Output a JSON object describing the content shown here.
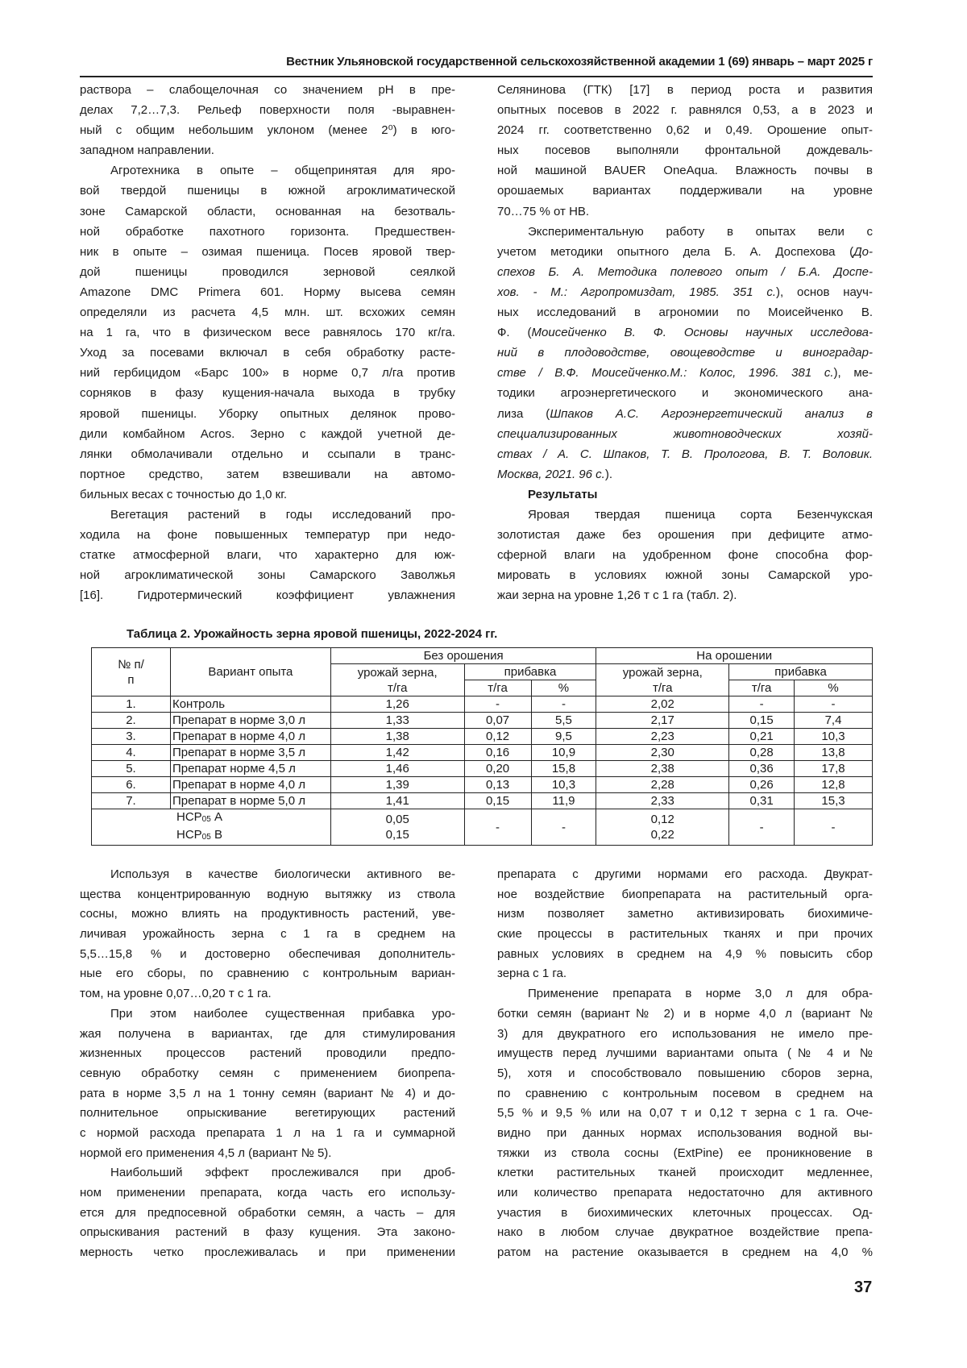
{
  "header": {
    "journal": "Вестник Ульяновской государственной сельскохозяйственной академии 1 (69) январь – март 2025 г"
  },
  "top_left": [
    {
      "indent": false,
      "lines": [
        "раствора – слабощелочная со значением pH в пре-",
        "делах 7,2…7,3. Рельеф поверхности поля -выравнен-",
        "ный с общим небольшим уклоном (менее 2⁰) в юго-",
        "западном направлении."
      ]
    },
    {
      "indent": true,
      "lines": [
        "Агротехника в опыте – общепринятая для яро-",
        "вой твердой пшеницы в южной агроклиматической",
        "зоне Самарской области, основанная на безотваль-",
        "ной обработке пахотного горизонта. Предшествен-",
        "ник в опыте – озимая пшеница. Посев яровой твер-",
        "дой пшеницы проводился зерновой сеялкой",
        "Amazone DMC Primera 601. Норму высева семян",
        "определяли из расчета 4,5 млн. шт. всхожих семян",
        "на 1 га, что в физическом весе равнялось 170 кг/га.",
        "Уход за посевами включал в себя обработку расте-",
        "ний гербицидом «Барс 100» в норме 0,7 л/га против",
        "сорняков в фазу кущения-начала выхода в трубку",
        "яровой пшеницы. Уборку опытных делянок прово-",
        "дили комбайном Acros. Зерно с каждой учетной де-",
        "лянки обмолачивали отдельно и ссыпали в транс-",
        "портное средство, затем взвешивали на автомо-",
        "бильных весах с точностью до 1,0 кг."
      ]
    },
    {
      "indent": true,
      "open": true,
      "lines": [
        "Вегетация растений в годы исследований про-",
        "ходила на фоне повышенных температур при недо-",
        "статке атмосферной влаги, что характерно для юж-",
        "ной агроклиматической зоны Самарского Заволжья",
        "[16]. Гидротермический коэффициент увлажнения"
      ]
    }
  ],
  "top_right": [
    {
      "indent": false,
      "lines": [
        "Селянинова (ГТК) [17] в период роста и развития",
        "опытных посевов в 2022 г. равнялся 0,53, а в 2023 и",
        "2024 гг. соответственно 0,62 и 0,49. Орошение опыт-",
        "ных посевов выполняли фронтальной дождеваль-",
        "ной машиной BAUER OneAqua. Влажность почвы в",
        "орошаемых вариантах поддерживали на уровне",
        "70…75 % от НВ."
      ]
    },
    {
      "indent": true,
      "lines": [
        "Экспериментальную работу в опытах вели с",
        [
          {
            "t": "учетом методики опытного дела Б. А. Доспехова ("
          },
          {
            "t": "До-",
            "i": true
          }
        ],
        [
          {
            "t": "спехов Б. А. Методика полевого опыт / Б.А. Доспе-",
            "i": true
          }
        ],
        [
          {
            "t": "хов. - М.: Агропромиздат, 1985. 351 с.",
            "i": true
          },
          {
            "t": "), основ науч-"
          }
        ],
        "ных исследований в агрономии по Моисейченко В.",
        [
          {
            "t": "Ф. ("
          },
          {
            "t": "Моисейченко В. Ф. Основы научных исследова-",
            "i": true
          }
        ],
        [
          {
            "t": "ний в плодоводстве, овощеводстве и виноградар-",
            "i": true
          }
        ],
        [
          {
            "t": "стве / В.Ф. Моисейченко.М.: Колос, 1996. 381 с.",
            "i": true
          },
          {
            "t": "), ме-"
          }
        ],
        "тодики агроэнергетического и экономического ана-",
        [
          {
            "t": "лиза ("
          },
          {
            "t": "Шпаков А.С. Агроэнергетический анализ в",
            "i": true
          }
        ],
        [
          {
            "t": "специализированных животноводческих хозяй-",
            "i": true
          }
        ],
        [
          {
            "t": "ствах / А. С. Шпаков, Т. В. Прологова, В. Т. Воловик.",
            "i": true
          }
        ],
        [
          {
            "t": "Москва, 2021. 96 с.",
            "i": true
          },
          {
            "t": ")."
          }
        ]
      ]
    },
    {
      "indent": true,
      "heading": true,
      "lines": [
        "Результаты"
      ]
    },
    {
      "indent": true,
      "lines": [
        "Яровая твердая пшеница сорта Безенчукская",
        "золотистая даже без орошения при дефиците атмо-",
        "сферной влаги на удобренном фоне способна фор-",
        "мировать в условиях южной зоны Самарской уро-",
        "жаи зерна на уровне 1,26 т с 1 га (табл. 2)."
      ]
    }
  ],
  "table": {
    "caption": "Таблица 2. Урожайность зерна яровой пшеницы, 2022-2024 гг.",
    "h_num": "№ п/п",
    "h_variant": "Вариант опыта",
    "h_no_irr": "Без орошения",
    "h_irr": "На орошении",
    "h_yield": "урожай зерна,",
    "h_yield_unit": "т/га",
    "h_gain": "прибавка",
    "h_tha": "т/га",
    "h_pct": "%",
    "rows": [
      [
        "1.",
        "Контроль",
        "1,26",
        "-",
        "-",
        "2,02",
        "-",
        "-"
      ],
      [
        "2.",
        "Препарат в норме 3,0 л",
        "1,33",
        "0,07",
        "5,5",
        "2,17",
        "0,15",
        "7,4"
      ],
      [
        "3.",
        "Препарат в норме 4,0 л",
        "1,38",
        "0,12",
        "9,5",
        "2,23",
        "0,21",
        "10,3"
      ],
      [
        "4.",
        "Препарат в норме 3,5 л",
        "1,42",
        "0,16",
        "10,9",
        "2,30",
        "0,28",
        "13,8"
      ],
      [
        "5.",
        "Препарат норме 4,5 л",
        "1,46",
        "0,20",
        "15,8",
        "2,38",
        "0,36",
        "17,8"
      ],
      [
        "6.",
        "Препарат в норме 4,0 л",
        "1,39",
        "0,13",
        "10,3",
        "2,28",
        "0,26",
        "12,8"
      ],
      [
        "7.",
        "Препарат в норме 5,0 л",
        "1,41",
        "0,15",
        "11,9",
        "2,33",
        "0,31",
        "15,3"
      ]
    ],
    "lsd": {
      "label_a": "НСР",
      "sub": "05",
      "a": " А",
      "b": " В",
      "no_irr_a": "0,05",
      "no_irr_b": "0,15",
      "irr_a": "0,12",
      "irr_b": "0,22",
      "dash": "-"
    }
  },
  "bottom_left": [
    {
      "indent": true,
      "lines": [
        "Используя в качестве биологически активного ве-",
        "щества концентрированную водную вытяжку из ствола",
        "сосны, можно влиять на продуктивность растений, уве-",
        "личивая урожайность зерна с 1 га в среднем на",
        "5,5…15,8 % и достоверно обеспечивая дополнитель-",
        "ные его сборы, по сравнению с контрольным вариан-",
        "том, на уровне 0,07…0,20 т с 1 га."
      ]
    },
    {
      "indent": true,
      "lines": [
        "При этом наиболее существенная прибавка уро-",
        "жая получена в вариантах, где для стимулирования",
        "жизненных процессов растений проводили предпо-",
        "севную обработку семян с применением биопрепа-",
        "рата в норме 3,5 л на 1 тонну семян (вариант № 4) и до-",
        "полнительное опрыскивание вегетирующих растений",
        "с нормой расхода препарата 1 л на 1 га и суммарной",
        "нормой его применения 4,5 л (вариант № 5)."
      ]
    },
    {
      "indent": true,
      "open": true,
      "lines": [
        "Наибольший эффект прослеживался при дроб-",
        "ном применении препарата, когда часть его использу-",
        "ется для предпосевной обработки семян, а часть – для",
        "опрыскивания растений в фазу кущения. Эта законо-",
        "мерность четко прослеживалась и при применении"
      ]
    }
  ],
  "bottom_right": [
    {
      "indent": false,
      "lines": [
        "препарата с другими нормами его расхода. Двукрат-",
        "ное воздействие биопрепарата на растительный орга-",
        "низм позволяет заметно активизировать биохимиче-",
        "ские процессы в растительных тканях и при прочих",
        "равных условиях в среднем на 4,9 % повысить сбор",
        "зерна с 1 га."
      ]
    },
    {
      "indent": true,
      "open": true,
      "lines": [
        "Применение препарата в норме 3,0 л для обра-",
        "ботки семян (вариант№ 2) и в норме 4,0 л (вариант №",
        "3) для двукратного его использования не имело пре-",
        "имуществ перед лучшими вариантами опыта (№ 4 и №",
        "5), хотя и способствовало повышению сборов зерна,",
        "по сравнению с контрольным посевом в среднем на",
        "5,5 % и 9,5 % или на 0,07 т и 0,12 т зерна с 1 га. Оче-",
        "видно при данных нормах использования водной вы-",
        "тяжки из ствола сосны (ExtPine) ее проникновение в",
        "клетки растительных тканей происходит медленнее,",
        "или количество препарата недостаточно для активного",
        "участия в биохимических клеточных процессах. Од-",
        "нако в любом случае двукратное воздействие препа-",
        "ратом на растение оказывается в среднем на 4,0 %"
      ]
    }
  ],
  "page_number": "37"
}
